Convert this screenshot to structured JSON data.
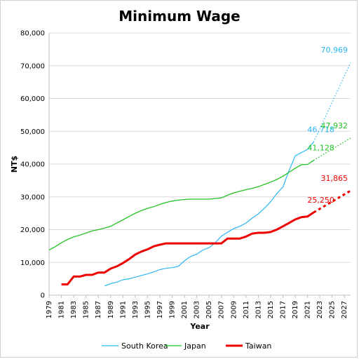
{
  "chart_data": {
    "type": "line",
    "title": "Minimum Wage",
    "xlabel": "Year",
    "ylabel": "NT$",
    "xlim": [
      1979,
      2028
    ],
    "ylim": [
      0,
      80000
    ],
    "y_ticks": [
      0,
      10000,
      20000,
      30000,
      40000,
      50000,
      60000,
      70000,
      80000
    ],
    "y_tick_labels": [
      "0",
      "10,000",
      "20,000",
      "30,000",
      "40,000",
      "50,000",
      "60,000",
      "70,000",
      "80,000"
    ],
    "x_ticks": [
      1979,
      1981,
      1983,
      1985,
      1987,
      1989,
      1991,
      1993,
      1995,
      1997,
      1999,
      2001,
      2003,
      2005,
      2007,
      2009,
      2011,
      2013,
      2015,
      2017,
      2019,
      2021,
      2023,
      2025,
      2027
    ],
    "x_tick_labels": [
      "1979",
      "1981",
      "1983",
      "1985",
      "1987",
      "1989",
      "1991",
      "1993",
      "1995",
      "1997",
      "1999",
      "2001",
      "2003",
      "2005",
      "2007",
      "2009",
      "2011",
      "2013",
      "2015",
      "2017",
      "2019",
      "2021",
      "2023",
      "2025",
      "2027"
    ],
    "grid": true,
    "legend_position": "bottom",
    "series": [
      {
        "name": "South Korea",
        "color": "#29b6f6",
        "x": [
          1988,
          1989,
          1990,
          1991,
          1992,
          1993,
          1994,
          1995,
          1996,
          1997,
          1998,
          1999,
          2000,
          2001,
          2002,
          2003,
          2004,
          2005,
          2006,
          2007,
          2008,
          2009,
          2010,
          2011,
          2012,
          2013,
          2014,
          2015,
          2016,
          2017,
          2018,
          2019,
          2020,
          2021,
          2022
        ],
        "values": [
          2800,
          3500,
          4000,
          4700,
          5000,
          5500,
          6000,
          6500,
          7100,
          7800,
          8200,
          8400,
          8800,
          10500,
          11800,
          12500,
          13800,
          14500,
          16000,
          18000,
          19200,
          20300,
          21000,
          22000,
          23500,
          24800,
          26500,
          28500,
          31000,
          33000,
          38000,
          42500,
          43500,
          44500,
          46718
        ],
        "projection": {
          "x": [
            2022,
            2028
          ],
          "values": [
            46718,
            70969
          ]
        },
        "labels": [
          {
            "x": 2022,
            "value": 46718,
            "text": "46,718"
          },
          {
            "x": 2028,
            "value": 70969,
            "text": "70,969"
          }
        ]
      },
      {
        "name": "Japan",
        "color": "#22c322",
        "x": [
          1979,
          1980,
          1981,
          1982,
          1983,
          1984,
          1985,
          1986,
          1987,
          1988,
          1989,
          1990,
          1991,
          1992,
          1993,
          1994,
          1995,
          1996,
          1997,
          1998,
          1999,
          2000,
          2001,
          2002,
          2003,
          2004,
          2005,
          2006,
          2007,
          2008,
          2009,
          2010,
          2011,
          2012,
          2013,
          2014,
          2015,
          2016,
          2017,
          2018,
          2019,
          2020,
          2021,
          2022
        ],
        "values": [
          13800,
          14800,
          16000,
          17000,
          17800,
          18300,
          19000,
          19600,
          20000,
          20500,
          21000,
          22000,
          23000,
          24000,
          25000,
          25800,
          26500,
          27000,
          27700,
          28300,
          28700,
          29000,
          29200,
          29300,
          29300,
          29300,
          29300,
          29500,
          29700,
          30500,
          31200,
          31700,
          32200,
          32600,
          33100,
          33800,
          34500,
          35300,
          36300,
          37500,
          38700,
          39800,
          39900,
          41128
        ],
        "projection": {
          "x": [
            2022,
            2028
          ],
          "values": [
            41128,
            47932
          ]
        },
        "labels": [
          {
            "x": 2022,
            "value": 41128,
            "text": "41,128"
          },
          {
            "x": 2028,
            "value": 47932,
            "text": "47,932"
          }
        ]
      },
      {
        "name": "Taiwan",
        "color": "#ee0000",
        "x": [
          1981,
          1982,
          1983,
          1984,
          1985,
          1986,
          1987,
          1988,
          1989,
          1990,
          1991,
          1992,
          1993,
          1994,
          1995,
          1996,
          1997,
          1998,
          1999,
          2000,
          2001,
          2002,
          2003,
          2004,
          2005,
          2006,
          2007,
          2008,
          2009,
          2010,
          2011,
          2012,
          2013,
          2014,
          2015,
          2016,
          2017,
          2018,
          2019,
          2020,
          2021,
          2022
        ],
        "values": [
          3300,
          3300,
          5700,
          5700,
          6200,
          6200,
          6900,
          6900,
          8100,
          8800,
          9800,
          11000,
          12400,
          13300,
          14000,
          14900,
          15400,
          15800,
          15800,
          15800,
          15800,
          15800,
          15800,
          15800,
          15800,
          15800,
          15800,
          17280,
          17280,
          17280,
          17880,
          18780,
          19047,
          19047,
          19273,
          20008,
          21009,
          22000,
          23100,
          23800,
          24000,
          25250
        ],
        "projection": {
          "x": [
            2022,
            2028
          ],
          "values": [
            25250,
            31865
          ]
        },
        "labels": [
          {
            "x": 2022,
            "value": 25250,
            "text": "25,250"
          },
          {
            "x": 2028,
            "value": 31865,
            "text": "31,865"
          }
        ]
      }
    ]
  }
}
